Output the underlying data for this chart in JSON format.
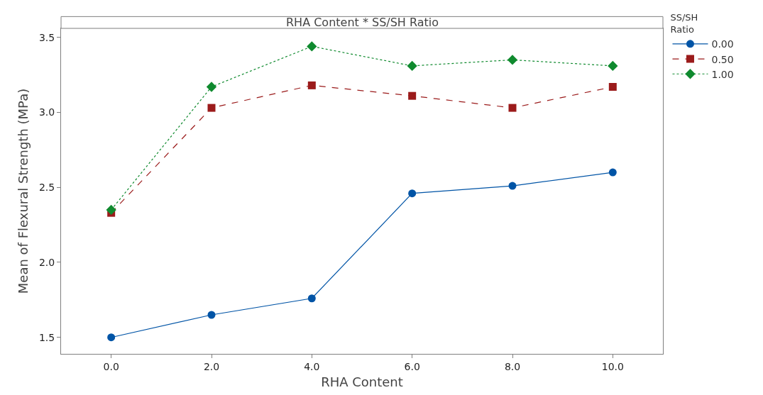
{
  "chart_data": {
    "type": "line",
    "title": "RHA Content * SS/SH Ratio",
    "xlabel": "RHA Content",
    "ylabel": "Mean of Flexural Strength (MPa)",
    "legend_title": "SS/SH Ratio",
    "x": [
      0,
      2,
      4,
      6,
      8,
      10
    ],
    "series": [
      {
        "name": "0.00",
        "color": "#0054a6",
        "marker": "circle",
        "line_style": "solid",
        "values": [
          1.5,
          1.65,
          1.76,
          2.46,
          2.51,
          2.6
        ]
      },
      {
        "name": "0.50",
        "color": "#9b1b1b",
        "marker": "square",
        "line_style": "dashed",
        "values": [
          2.33,
          3.03,
          3.18,
          3.11,
          3.03,
          3.17
        ]
      },
      {
        "name": "1.00",
        "color": "#0f8a2e",
        "marker": "diamond",
        "line_style": "dotted",
        "values": [
          2.35,
          3.17,
          3.44,
          3.31,
          3.35,
          3.31
        ]
      }
    ],
    "xlim": [
      -1,
      11
    ],
    "xticks": [
      {
        "value": 0,
        "label": "0.0"
      },
      {
        "value": 2,
        "label": "2.0"
      },
      {
        "value": 4,
        "label": "4.0"
      },
      {
        "value": 6,
        "label": "6.0"
      },
      {
        "value": 8,
        "label": "8.0"
      },
      {
        "value": 10,
        "label": "10.0"
      }
    ],
    "ylim": [
      1.39,
      3.56
    ],
    "yticks": [
      {
        "value": 1.5,
        "label": "1.5"
      },
      {
        "value": 2.0,
        "label": "2.0"
      },
      {
        "value": 2.5,
        "label": "2.5"
      },
      {
        "value": 3.0,
        "label": "3.0"
      },
      {
        "value": 3.5,
        "label": "3.5"
      }
    ],
    "grid": false,
    "legend": "top right"
  }
}
